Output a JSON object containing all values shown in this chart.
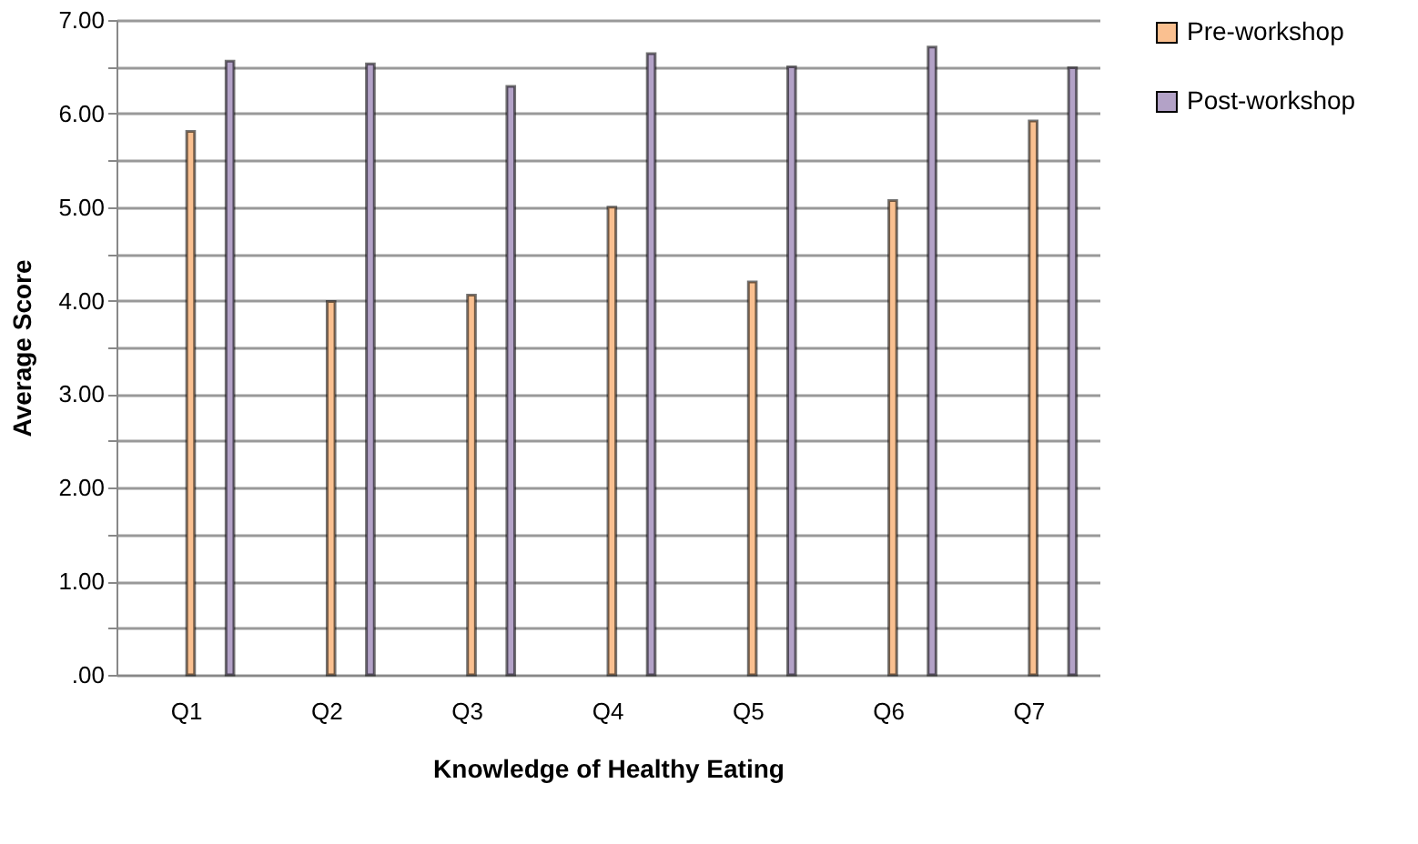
{
  "chart_data": {
    "type": "bar",
    "xlabel": "Knowledge of Healthy Eating",
    "ylabel": "Average Score",
    "categories": [
      "Q1",
      "Q2",
      "Q3",
      "Q4",
      "Q5",
      "Q6",
      "Q7"
    ],
    "series": [
      {
        "name": "Pre-workshop",
        "color": "#fac090",
        "values": [
          5.81,
          3.99,
          4.06,
          5.0,
          4.2,
          5.07,
          5.92
        ]
      },
      {
        "name": "Post-workshop",
        "color": "#b3a2c7",
        "values": [
          6.56,
          6.53,
          6.29,
          6.64,
          6.5,
          6.71,
          6.49
        ]
      }
    ],
    "ylim": [
      0,
      7
    ],
    "yticks": [
      {
        "value": 0,
        "label": ".00"
      },
      {
        "value": 0.5,
        "label": null
      },
      {
        "value": 1,
        "label": "1.00"
      },
      {
        "value": 1.5,
        "label": null
      },
      {
        "value": 2,
        "label": "2.00"
      },
      {
        "value": 2.5,
        "label": null
      },
      {
        "value": 3,
        "label": "3.00"
      },
      {
        "value": 3.5,
        "label": null
      },
      {
        "value": 4,
        "label": "4.00"
      },
      {
        "value": 4.5,
        "label": null
      },
      {
        "value": 5,
        "label": "5.00"
      },
      {
        "value": 5.5,
        "label": null
      },
      {
        "value": 6,
        "label": "6.00"
      },
      {
        "value": 6.5,
        "label": null
      },
      {
        "value": 7,
        "label": "7.00"
      }
    ],
    "grid": true,
    "legend": "right"
  }
}
